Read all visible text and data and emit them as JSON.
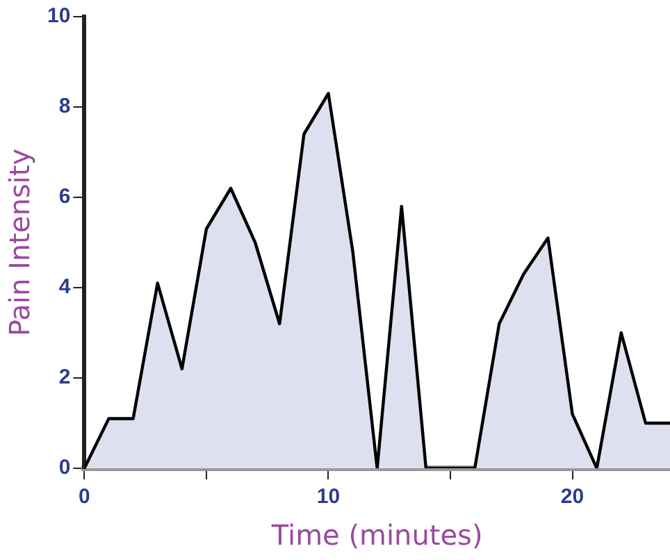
{
  "chart_data": {
    "type": "area",
    "xlabel": "Time (minutes)",
    "ylabel": "Pain Intensity",
    "x": [
      0,
      1,
      2,
      3,
      4,
      5,
      6,
      7,
      8,
      9,
      10,
      11,
      12,
      13,
      14,
      15,
      16,
      17,
      18,
      19,
      20,
      21,
      22,
      23,
      24
    ],
    "series": [
      {
        "color": "#000000",
        "values": [
          0,
          1.1,
          1.1,
          4.1,
          2.2,
          5.3,
          6.2,
          5.0,
          3.2,
          7.4,
          8.3,
          4.8,
          0,
          5.8,
          0,
          0,
          0,
          3.2,
          4.3,
          5.1,
          1.2,
          0,
          3.0,
          1.0,
          1.0
        ]
      }
    ],
    "xlim": [
      0,
      24
    ],
    "xticks": [
      0,
      {
        "value": 5,
        "label": null
      },
      10,
      {
        "value": 15,
        "label": null
      },
      20
    ],
    "ylim": [
      0,
      10
    ],
    "yticks": [
      0,
      2,
      4,
      6,
      8,
      10
    ],
    "grid": false,
    "legend": false,
    "marker": "none"
  }
}
